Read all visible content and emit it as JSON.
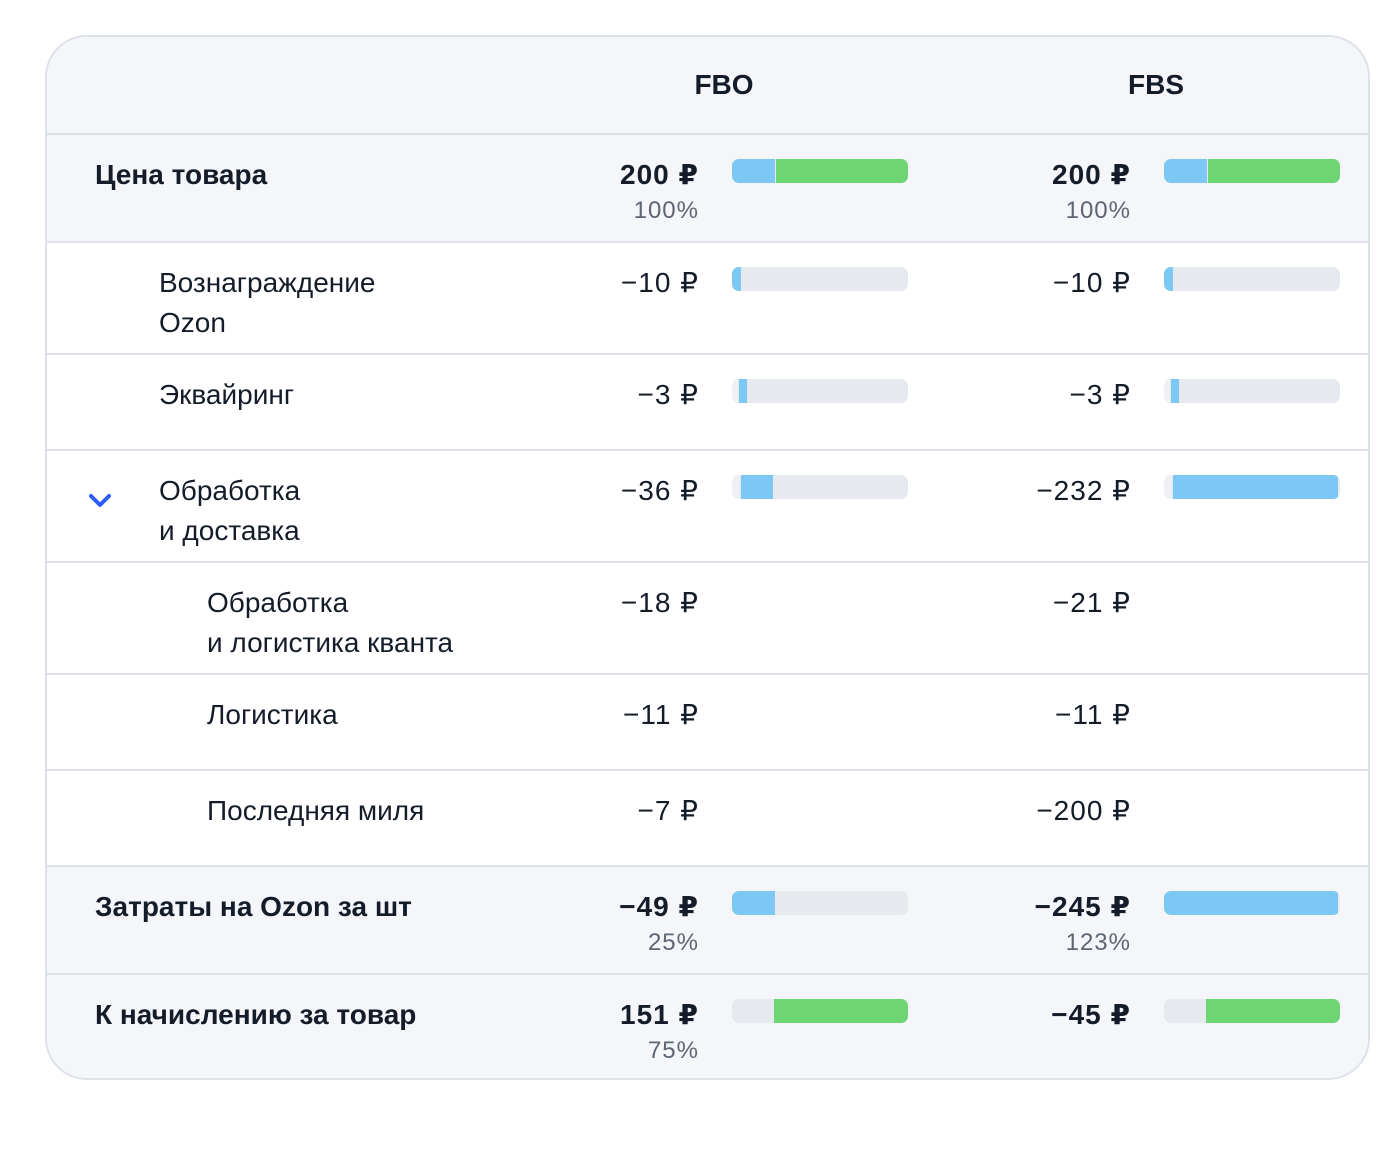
{
  "header": {
    "columns": [
      "FBO",
      "FBS"
    ]
  },
  "colors": {
    "blue": "#7dc7f5",
    "green": "#6dd672",
    "track": "#e6e9ee",
    "track_light": "#eef0f4",
    "accent": "#2f5cff"
  },
  "rows": [
    {
      "label": "Цена товара",
      "indent": 0,
      "bold": true,
      "shaded": true,
      "height": 108,
      "fbo": {
        "value": "200 ₽",
        "percent": "100%",
        "bar": [
          {
            "from": 0,
            "to": 0.245,
            "color": "blue"
          },
          {
            "from": 0.25,
            "to": 1,
            "color": "green"
          }
        ]
      },
      "fbs": {
        "value": "200 ₽",
        "percent": "100%",
        "bar": [
          {
            "from": 0,
            "to": 0.245,
            "color": "blue"
          },
          {
            "from": 0.25,
            "to": 1,
            "color": "green"
          }
        ]
      }
    },
    {
      "label": "Вознаграждение\nOzon",
      "indent": 1,
      "height": 112,
      "fbo": {
        "value": "−10 ₽",
        "bar": [
          {
            "from": 0,
            "to": 0.05,
            "color": "blue"
          }
        ]
      },
      "fbs": {
        "value": "−10 ₽",
        "bar": [
          {
            "from": 0,
            "to": 0.05,
            "color": "blue"
          }
        ]
      }
    },
    {
      "label": "Эквайринг",
      "indent": 1,
      "height": 96,
      "fbo": {
        "value": "−3 ₽",
        "bar": [
          {
            "from": 0,
            "to": 0.035,
            "color": "track_light"
          },
          {
            "from": 0.04,
            "to": 0.085,
            "color": "blue"
          }
        ]
      },
      "fbs": {
        "value": "−3 ₽",
        "bar": [
          {
            "from": 0,
            "to": 0.035,
            "color": "track_light"
          },
          {
            "from": 0.04,
            "to": 0.085,
            "color": "blue"
          }
        ]
      }
    },
    {
      "label": "Обработка\nи доставка",
      "indent": 1,
      "expanded": true,
      "height": 112,
      "fbo": {
        "value": "−36 ₽",
        "bar": [
          {
            "from": 0,
            "to": 0.045,
            "color": "track_light"
          },
          {
            "from": 0.05,
            "to": 0.235,
            "color": "blue"
          }
        ]
      },
      "fbs": {
        "value": "−232 ₽",
        "bar": [
          {
            "from": 0,
            "to": 0.045,
            "color": "track_light"
          },
          {
            "from": 0.05,
            "to": 0.99,
            "color": "blue"
          }
        ]
      }
    },
    {
      "label": "Обработка\nи логистика кванта",
      "indent": 2,
      "height": 112,
      "fbo": {
        "value": "−18 ₽"
      },
      "fbs": {
        "value": "−21 ₽"
      }
    },
    {
      "label": "Логистика",
      "indent": 2,
      "height": 96,
      "fbo": {
        "value": "−11 ₽"
      },
      "fbs": {
        "value": "−11 ₽"
      }
    },
    {
      "label": "Последняя миля",
      "indent": 2,
      "height": 96,
      "fbo": {
        "value": "−7 ₽"
      },
      "fbs": {
        "value": "−200 ₽"
      }
    },
    {
      "label": "Затраты на Ozon за шт",
      "indent": 0,
      "bold": true,
      "shaded": true,
      "height": 108,
      "fbo": {
        "value": "−49 ₽",
        "percent": "25%",
        "bar": [
          {
            "from": 0,
            "to": 0.245,
            "color": "blue"
          }
        ]
      },
      "fbs": {
        "value": "−245 ₽",
        "percent": "123%",
        "bar": [
          {
            "from": 0,
            "to": 0.99,
            "color": "blue"
          }
        ]
      }
    },
    {
      "label": "К начислению за товар",
      "indent": 0,
      "bold": true,
      "shaded": true,
      "height": 110,
      "last": true,
      "fbo": {
        "value": "151 ₽",
        "percent": "75%",
        "bar": [
          {
            "from": 0.24,
            "to": 1,
            "color": "green"
          }
        ]
      },
      "fbs": {
        "value": "−45 ₽",
        "bar": [
          {
            "from": 0.24,
            "to": 1,
            "color": "green"
          }
        ]
      }
    }
  ]
}
